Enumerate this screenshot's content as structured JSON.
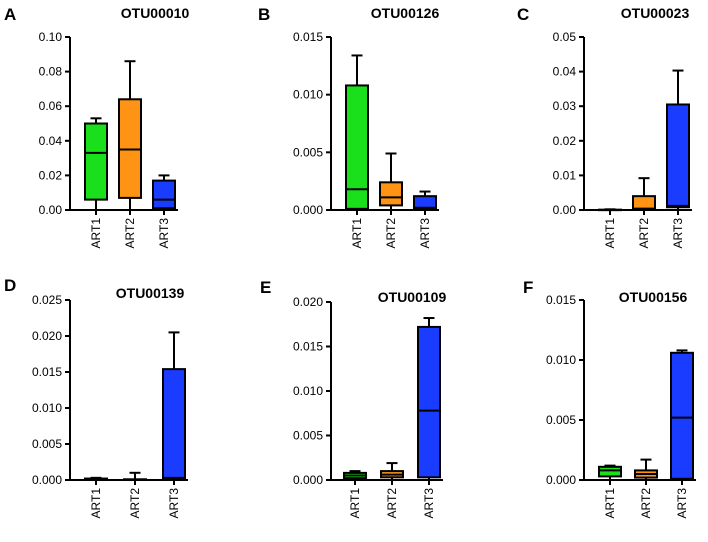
{
  "colors": {
    "ART1": "#19e01a",
    "ART2": "#ff9414",
    "ART3": "#1a3cff",
    "line": "#000000"
  },
  "chart_data": [
    {
      "letter": "A",
      "title": "OTU00010",
      "type": "box",
      "categories": [
        "ART1",
        "ART2",
        "ART3"
      ],
      "ylim": [
        0,
        0.1
      ],
      "yticks": [
        "0.00",
        "0.02",
        "0.04",
        "0.06",
        "0.08",
        "0.10"
      ],
      "boxes": [
        {
          "name": "ART1",
          "min": 0.0,
          "q1": 0.006,
          "median": 0.033,
          "q3": 0.05,
          "max": 0.053
        },
        {
          "name": "ART2",
          "min": 0.0,
          "q1": 0.007,
          "median": 0.035,
          "q3": 0.064,
          "max": 0.086
        },
        {
          "name": "ART3",
          "min": 0.0,
          "q1": 0.001,
          "median": 0.006,
          "q3": 0.017,
          "max": 0.02
        }
      ]
    },
    {
      "letter": "B",
      "title": "OTU00126",
      "type": "box",
      "categories": [
        "ART1",
        "ART2",
        "ART3"
      ],
      "ylim": [
        0,
        0.015
      ],
      "yticks": [
        "0.000",
        "0.005",
        "0.010",
        "0.015"
      ],
      "boxes": [
        {
          "name": "ART1",
          "min": 0.0,
          "q1": 0.0001,
          "median": 0.0018,
          "q3": 0.0108,
          "max": 0.0134
        },
        {
          "name": "ART2",
          "min": 0.0,
          "q1": 0.0004,
          "median": 0.0011,
          "q3": 0.0024,
          "max": 0.0049
        },
        {
          "name": "ART3",
          "min": 0.0,
          "q1": 0.0001,
          "median": 0.0002,
          "q3": 0.0012,
          "max": 0.0016
        }
      ]
    },
    {
      "letter": "C",
      "title": "OTU00023",
      "type": "box",
      "categories": [
        "ART1",
        "ART2",
        "ART3"
      ],
      "ylim": [
        0,
        0.05
      ],
      "yticks": [
        "0.00",
        "0.01",
        "0.02",
        "0.03",
        "0.04",
        "0.05"
      ],
      "boxes": [
        {
          "name": "ART1",
          "min": 0.0,
          "q1": 0.0,
          "median": 0.0,
          "q3": 0.0001,
          "max": 0.0002
        },
        {
          "name": "ART2",
          "min": 0.0,
          "q1": 0.0,
          "median": 0.0004,
          "q3": 0.004,
          "max": 0.0092
        },
        {
          "name": "ART3",
          "min": 0.0,
          "q1": 0.0008,
          "median": 0.0012,
          "q3": 0.0305,
          "max": 0.0403
        }
      ]
    },
    {
      "letter": "D",
      "title": "OTU00139",
      "type": "box",
      "categories": [
        "ART1",
        "ART2",
        "ART3"
      ],
      "ylim": [
        0,
        0.025
      ],
      "yticks": [
        "0.000",
        "0.005",
        "0.010",
        "0.015",
        "0.020",
        "0.025"
      ],
      "boxes": [
        {
          "name": "ART1",
          "min": 0.0,
          "q1": 0.0,
          "median": 0.0,
          "q3": 0.0002,
          "max": 0.0003
        },
        {
          "name": "ART2",
          "min": 0.0,
          "q1": 0.0,
          "median": 0.0,
          "q3": 0.0001,
          "max": 0.001
        },
        {
          "name": "ART3",
          "min": 0.0,
          "q1": 0.0002,
          "median": 0.0003,
          "q3": 0.0154,
          "max": 0.0205
        }
      ]
    },
    {
      "letter": "E",
      "title": "OTU00109",
      "type": "box",
      "categories": [
        "ART1",
        "ART2",
        "ART3"
      ],
      "ylim": [
        0,
        0.02
      ],
      "yticks": [
        "0.000",
        "0.005",
        "0.010",
        "0.015",
        "0.020"
      ],
      "boxes": [
        {
          "name": "ART1",
          "min": 0.0,
          "q1": 0.0002,
          "median": 0.0005,
          "q3": 0.0008,
          "max": 0.001
        },
        {
          "name": "ART2",
          "min": 0.0,
          "q1": 0.0003,
          "median": 0.0006,
          "q3": 0.001,
          "max": 0.0019
        },
        {
          "name": "ART3",
          "min": 0.0,
          "q1": 0.0003,
          "median": 0.0078,
          "q3": 0.0172,
          "max": 0.0182
        }
      ]
    },
    {
      "letter": "F",
      "title": "OTU00156",
      "type": "box",
      "categories": [
        "ART1",
        "ART2",
        "ART3"
      ],
      "ylim": [
        0,
        0.015
      ],
      "yticks": [
        "0.000",
        "0.005",
        "0.010",
        "0.015"
      ],
      "boxes": [
        {
          "name": "ART1",
          "min": 0.0,
          "q1": 0.0003,
          "median": 0.0008,
          "q3": 0.0011,
          "max": 0.0012
        },
        {
          "name": "ART2",
          "min": 0.0,
          "q1": 0.0002,
          "median": 0.0005,
          "q3": 0.0008,
          "max": 0.0017
        },
        {
          "name": "ART3",
          "min": 0.0,
          "q1": 0.0001,
          "median": 0.0052,
          "q3": 0.0106,
          "max": 0.0108
        }
      ]
    }
  ]
}
